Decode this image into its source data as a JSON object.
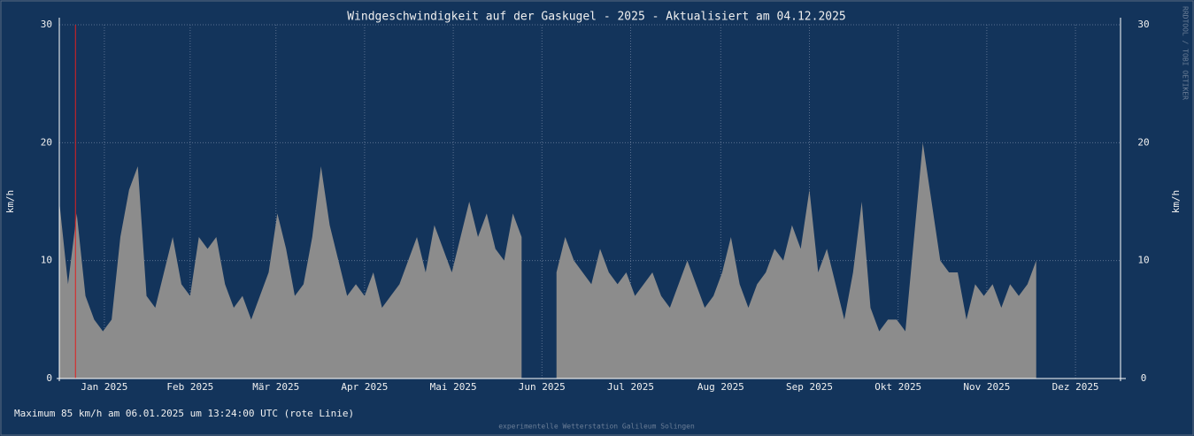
{
  "chart_data": {
    "type": "area",
    "title": "Windgeschwindigkeit auf der Gaskugel - 2025 - Aktualisiert am 04.12.2025",
    "ylabel": "km/h",
    "y2label": "km/h",
    "annotation": "Maximum  85 km/h am 06.01.2025 um 13:24:00 UTC (rote Linie)",
    "footer": "experimentelle Wetterstation Galileum Solingen",
    "side_text": "RRDTOOL / TOBI OETIKER",
    "max_marker_x": 5.56,
    "max_marker_color": "#e02020",
    "color": "#8c8c8c",
    "grid": true,
    "xlim": [
      0,
      365
    ],
    "xticks": [
      {
        "value": 15.5,
        "label": "Jan 2025"
      },
      {
        "value": 45,
        "label": "Feb 2025"
      },
      {
        "value": 74.5,
        "label": "Mär 2025"
      },
      {
        "value": 105,
        "label": "Apr 2025"
      },
      {
        "value": 135.5,
        "label": "Mai 2025"
      },
      {
        "value": 166,
        "label": "Jun 2025"
      },
      {
        "value": 196.5,
        "label": "Jul 2025"
      },
      {
        "value": 227.5,
        "label": "Aug 2025"
      },
      {
        "value": 258,
        "label": "Sep 2025"
      },
      {
        "value": 288.5,
        "label": "Okt 2025"
      },
      {
        "value": 319,
        "label": "Nov 2025"
      },
      {
        "value": 349.5,
        "label": "Dez 2025"
      }
    ],
    "ylim": [
      0,
      30
    ],
    "yticks": [
      0,
      10,
      20,
      30
    ],
    "y2lim": [
      0,
      30
    ],
    "y2ticks": [
      0,
      10,
      20,
      30
    ],
    "x": [
      0,
      3,
      6,
      9,
      12,
      15,
      18,
      21,
      24,
      27,
      30,
      33,
      36,
      39,
      42,
      45,
      48,
      51,
      54,
      57,
      60,
      63,
      66,
      69,
      72,
      75,
      78,
      81,
      84,
      87,
      90,
      93,
      96,
      99,
      102,
      105,
      108,
      111,
      114,
      117,
      120,
      123,
      126,
      129,
      132,
      135,
      138,
      141,
      144,
      147,
      150,
      153,
      156,
      159,
      162,
      165,
      168,
      171,
      174,
      177,
      180,
      183,
      186,
      189,
      192,
      195,
      198,
      201,
      204,
      207,
      210,
      213,
      216,
      219,
      222,
      225,
      228,
      231,
      234,
      237,
      240,
      243,
      246,
      249,
      252,
      255,
      258,
      261,
      264,
      267,
      270,
      273,
      276,
      279,
      282,
      285,
      288,
      291,
      294,
      297,
      300,
      303,
      306,
      309,
      312,
      315,
      318,
      321,
      324,
      327,
      330,
      333,
      336
    ],
    "values": [
      15,
      8,
      14,
      7,
      5,
      4,
      5,
      12,
      16,
      18,
      7,
      6,
      9,
      12,
      8,
      7,
      12,
      11,
      12,
      8,
      6,
      7,
      5,
      7,
      9,
      14,
      11,
      7,
      8,
      12,
      18,
      13,
      10,
      7,
      8,
      7,
      9,
      6,
      7,
      8,
      10,
      12,
      9,
      13,
      11,
      9,
      12,
      15,
      12,
      14,
      11,
      10,
      14,
      12,
      null,
      null,
      null,
      9,
      12,
      10,
      9,
      8,
      11,
      9,
      8,
      9,
      7,
      8,
      9,
      7,
      6,
      8,
      10,
      8,
      6,
      7,
      9,
      12,
      8,
      6,
      8,
      9,
      11,
      10,
      13,
      11,
      16,
      9,
      11,
      8,
      5,
      9,
      15,
      6,
      4,
      5,
      5,
      4,
      12,
      20,
      15,
      10,
      9,
      9,
      5,
      8,
      7,
      8,
      6,
      8,
      7,
      8,
      10
    ]
  }
}
